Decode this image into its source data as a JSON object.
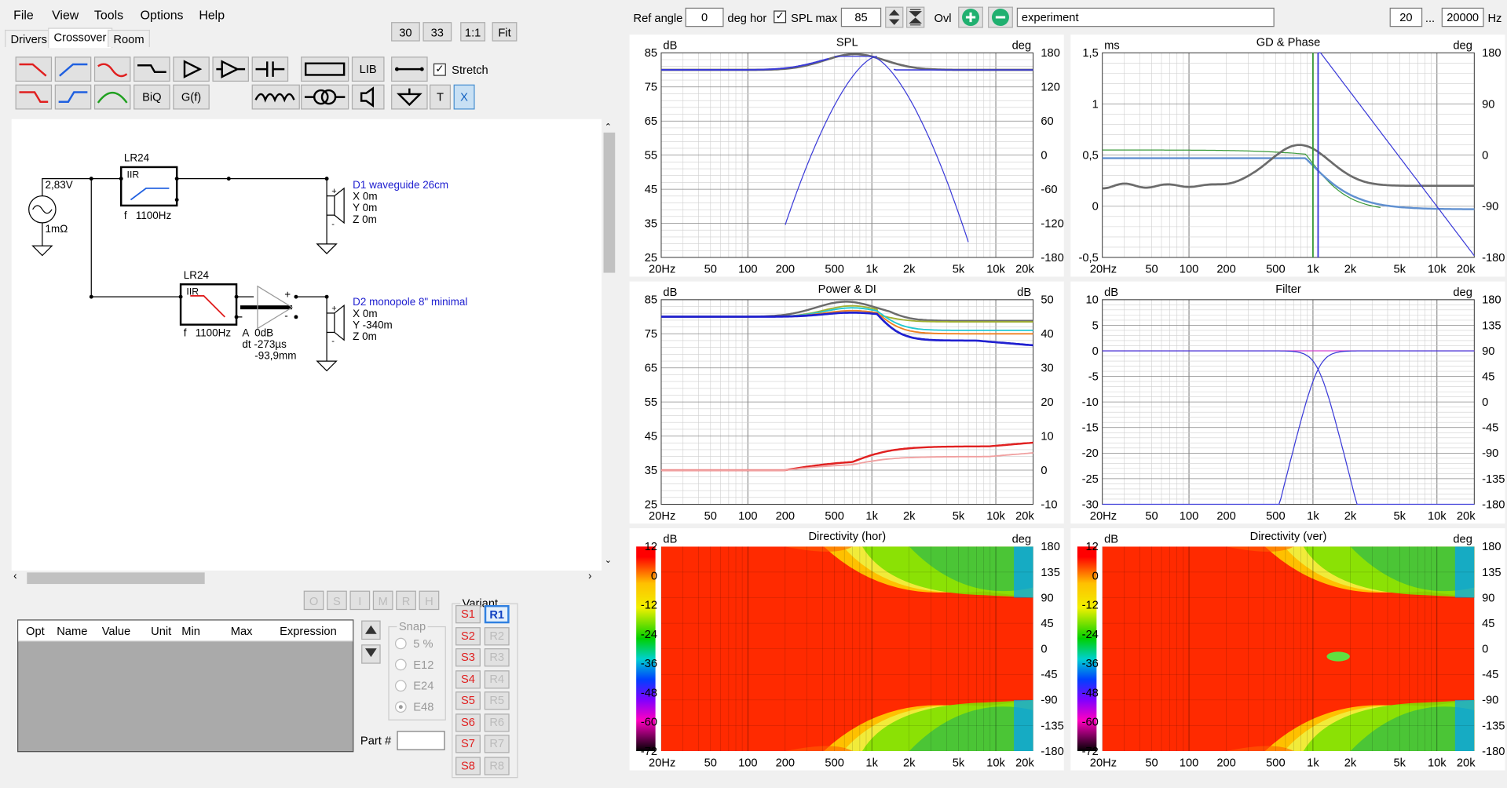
{
  "menu": {
    "file": "File",
    "view": "View",
    "tools": "Tools",
    "options": "Options",
    "help": "Help"
  },
  "tabs": {
    "drivers": "Drivers",
    "crossover": "Crossover",
    "room": "Room"
  },
  "zoom_buttons": {
    "b30": "30",
    "b33": "33",
    "b11": "1:1",
    "fit": "Fit"
  },
  "toolbar": {
    "lib": "LIB",
    "biq": "BiQ",
    "gf": "G(f)",
    "t": "T",
    "x": "X",
    "stretch_label": "Stretch",
    "stretch_checked": true
  },
  "schematic": {
    "source_voltage": "2,83V",
    "source_imp": "1mΩ",
    "filter1": {
      "type": "LR24",
      "kind": "IIR",
      "freq": "f   1100Hz"
    },
    "filter2": {
      "type": "LR24",
      "kind": "IIR",
      "freq": "f   1100Hz"
    },
    "gain": {
      "a": "A  0dB",
      "dt": "dt -273µs",
      "dist": "-93,9mm"
    },
    "driver1": {
      "name": "D1 waveguide 26cm",
      "x": "X 0m",
      "y": "Y 0m",
      "z": "Z 0m"
    },
    "driver2": {
      "name": "D2 monopole 8\" minimal",
      "x": "X 0m",
      "y": "Y -340m",
      "z": "Z 0m"
    }
  },
  "opt_buttons": [
    "O",
    "S",
    "I",
    "M",
    "R",
    "H"
  ],
  "param_table": {
    "columns": [
      "Opt",
      "Name",
      "Value",
      "Unit",
      "Min",
      "Max",
      "Expression"
    ]
  },
  "snap": {
    "title": "Snap",
    "options": [
      "5 %",
      "E12",
      "E24",
      "E48"
    ],
    "selected": "E48"
  },
  "part_label": "Part #",
  "variant": {
    "title": "Variant",
    "s": [
      "S1",
      "S2",
      "S3",
      "S4",
      "S5",
      "S6",
      "S7",
      "S8"
    ],
    "r": [
      "R1",
      "R2",
      "R3",
      "R4",
      "R5",
      "R6",
      "R7",
      "R8"
    ],
    "active_r": "R1"
  },
  "topbar": {
    "ref_angle_label": "Ref angle",
    "ref_angle": "0",
    "deg_hor": "deg hor",
    "spl_max_label": "SPL max",
    "spl_max": "85",
    "ovl": "Ovl",
    "name": "experiment",
    "f_min": "20",
    "dots": "...",
    "f_max": "20000",
    "hz": "Hz"
  },
  "plots": {
    "freq_ticks": [
      "20Hz",
      "50",
      "100",
      "200",
      "500",
      "1k",
      "2k",
      "5k",
      "10k",
      "20k"
    ],
    "spl": {
      "title": "SPL",
      "left_unit": "dB",
      "right_unit": "deg",
      "left_ticks": [
        "85",
        "75",
        "65",
        "55",
        "45",
        "35",
        "25"
      ],
      "right_ticks": [
        "180",
        "120",
        "60",
        "0",
        "-60",
        "-120",
        "-180"
      ]
    },
    "gd": {
      "title": "GD & Phase",
      "left_unit": "ms",
      "right_unit": "deg",
      "left_ticks": [
        "1,5",
        "1",
        "0,5",
        "0",
        "-0,5"
      ],
      "right_ticks": [
        "180",
        "90",
        "0",
        "-90",
        "-180"
      ]
    },
    "power": {
      "title": "Power & DI",
      "left_unit": "dB",
      "right_unit": "dB",
      "left_ticks": [
        "85",
        "75",
        "65",
        "55",
        "45",
        "35",
        "25"
      ],
      "right_ticks": [
        "50",
        "40",
        "30",
        "20",
        "10",
        "0",
        "-10"
      ]
    },
    "filter": {
      "title": "Filter",
      "left_unit": "dB",
      "right_unit": "deg",
      "left_ticks": [
        "10",
        "5",
        "0",
        "-5",
        "-10",
        "-15",
        "-20",
        "-25",
        "-30"
      ],
      "right_ticks": [
        "180",
        "135",
        "90",
        "45",
        "0",
        "-45",
        "-90",
        "-135",
        "-180"
      ]
    },
    "dir_hor": {
      "title": "Directivity (hor)",
      "left_unit": "dB",
      "right_unit": "deg",
      "scale_ticks": [
        "12",
        "0",
        "-12",
        "-24",
        "-36",
        "-48",
        "-60",
        "-72"
      ],
      "right_ticks": [
        "180",
        "135",
        "90",
        "45",
        "0",
        "-45",
        "-90",
        "-135",
        "-180"
      ]
    },
    "dir_ver": {
      "title": "Directivity (ver)",
      "left_unit": "dB",
      "right_unit": "deg",
      "scale_ticks": [
        "12",
        "0",
        "-12",
        "-24",
        "-36",
        "-48",
        "-60",
        "-72"
      ],
      "right_ticks": [
        "180",
        "135",
        "90",
        "45",
        "0",
        "-45",
        "-90",
        "-135",
        "-180"
      ]
    }
  },
  "colors": {
    "accent": "#0078d7",
    "spl_line": "#3a3ad8",
    "total": "#6b6b6b",
    "di_red": "#e02020"
  }
}
